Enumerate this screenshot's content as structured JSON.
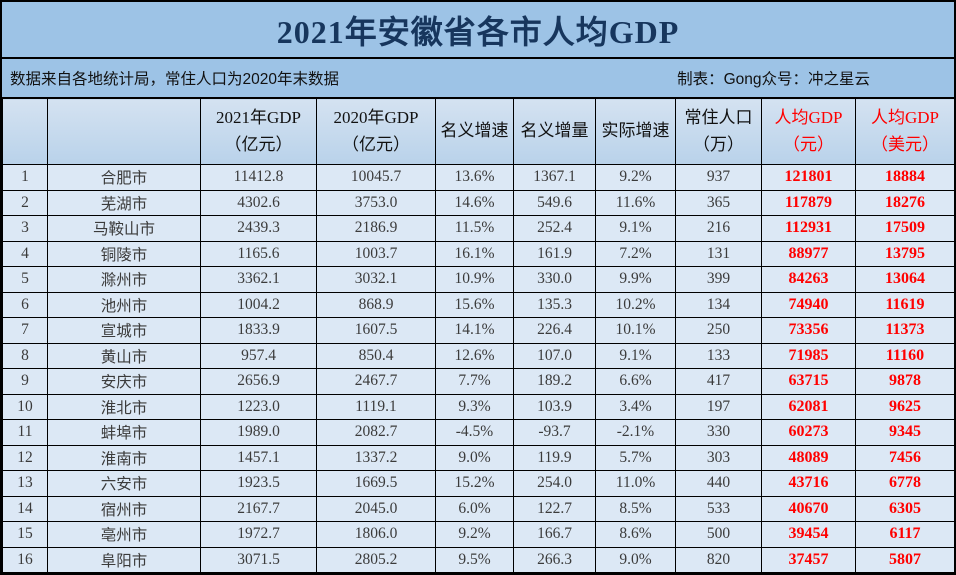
{
  "title": "2021年安徽省各市人均GDP",
  "subtitle": {
    "left": "数据来自各地统计局，常住人口为2020年末数据",
    "right": "制表：Gong众号：冲之星云"
  },
  "colors": {
    "page_bg": "#9dc3e6",
    "row_bg": "#dce8f5",
    "accent_red": "#ff0000",
    "title_navy": "#17365d",
    "border": "#000000"
  },
  "table": {
    "headers": [
      {
        "l1": "",
        "l2": "",
        "red": false
      },
      {
        "l1": "",
        "l2": "",
        "red": false
      },
      {
        "l1": "2021年GDP",
        "l2": "（亿元）",
        "red": false
      },
      {
        "l1": "2020年GDP",
        "l2": "（亿元）",
        "red": false
      },
      {
        "l1": "名义增速",
        "l2": "",
        "red": false
      },
      {
        "l1": "名义增量",
        "l2": "",
        "red": false
      },
      {
        "l1": "实际增速",
        "l2": "",
        "red": false
      },
      {
        "l1": "常住人口",
        "l2": "（万）",
        "red": false
      },
      {
        "l1": "人均GDP",
        "l2": "（元）",
        "red": true
      },
      {
        "l1": "人均GDP",
        "l2": "（美元）",
        "red": true
      }
    ]
  },
  "chart_data": {
    "type": "table",
    "title": "2021年安徽省各市人均GDP",
    "columns": [
      "",
      "",
      "2021年GDP（亿元）",
      "2020年GDP（亿元）",
      "名义增速",
      "名义增量",
      "实际增速",
      "常住人口（万）",
      "人均GDP（元）",
      "人均GDP（美元）"
    ],
    "rows": [
      [
        "1",
        "合肥市",
        "11412.8",
        "10045.7",
        "13.6%",
        "1367.1",
        "9.2%",
        "937",
        "121801",
        "18884"
      ],
      [
        "2",
        "芜湖市",
        "4302.6",
        "3753.0",
        "14.6%",
        "549.6",
        "11.6%",
        "365",
        "117879",
        "18276"
      ],
      [
        "3",
        "马鞍山市",
        "2439.3",
        "2186.9",
        "11.5%",
        "252.4",
        "9.1%",
        "216",
        "112931",
        "17509"
      ],
      [
        "4",
        "铜陵市",
        "1165.6",
        "1003.7",
        "16.1%",
        "161.9",
        "7.2%",
        "131",
        "88977",
        "13795"
      ],
      [
        "5",
        "滁州市",
        "3362.1",
        "3032.1",
        "10.9%",
        "330.0",
        "9.9%",
        "399",
        "84263",
        "13064"
      ],
      [
        "6",
        "池州市",
        "1004.2",
        "868.9",
        "15.6%",
        "135.3",
        "10.2%",
        "134",
        "74940",
        "11619"
      ],
      [
        "7",
        "宣城市",
        "1833.9",
        "1607.5",
        "14.1%",
        "226.4",
        "10.1%",
        "250",
        "73356",
        "11373"
      ],
      [
        "8",
        "黄山市",
        "957.4",
        "850.4",
        "12.6%",
        "107.0",
        "9.1%",
        "133",
        "71985",
        "11160"
      ],
      [
        "9",
        "安庆市",
        "2656.9",
        "2467.7",
        "7.7%",
        "189.2",
        "6.6%",
        "417",
        "63715",
        "9878"
      ],
      [
        "10",
        "淮北市",
        "1223.0",
        "1119.1",
        "9.3%",
        "103.9",
        "3.4%",
        "197",
        "62081",
        "9625"
      ],
      [
        "11",
        "蚌埠市",
        "1989.0",
        "2082.7",
        "-4.5%",
        "-93.7",
        "-2.1%",
        "330",
        "60273",
        "9345"
      ],
      [
        "12",
        "淮南市",
        "1457.1",
        "1337.2",
        "9.0%",
        "119.9",
        "5.7%",
        "303",
        "48089",
        "7456"
      ],
      [
        "13",
        "六安市",
        "1923.5",
        "1669.5",
        "15.2%",
        "254.0",
        "11.0%",
        "440",
        "43716",
        "6778"
      ],
      [
        "14",
        "宿州市",
        "2167.7",
        "2045.0",
        "6.0%",
        "122.7",
        "8.5%",
        "533",
        "40670",
        "6305"
      ],
      [
        "15",
        "亳州市",
        "1972.7",
        "1806.0",
        "9.2%",
        "166.7",
        "8.6%",
        "500",
        "39454",
        "6117"
      ],
      [
        "16",
        "阜阳市",
        "3071.5",
        "2805.2",
        "9.5%",
        "266.3",
        "9.0%",
        "820",
        "37457",
        "5807"
      ]
    ]
  }
}
